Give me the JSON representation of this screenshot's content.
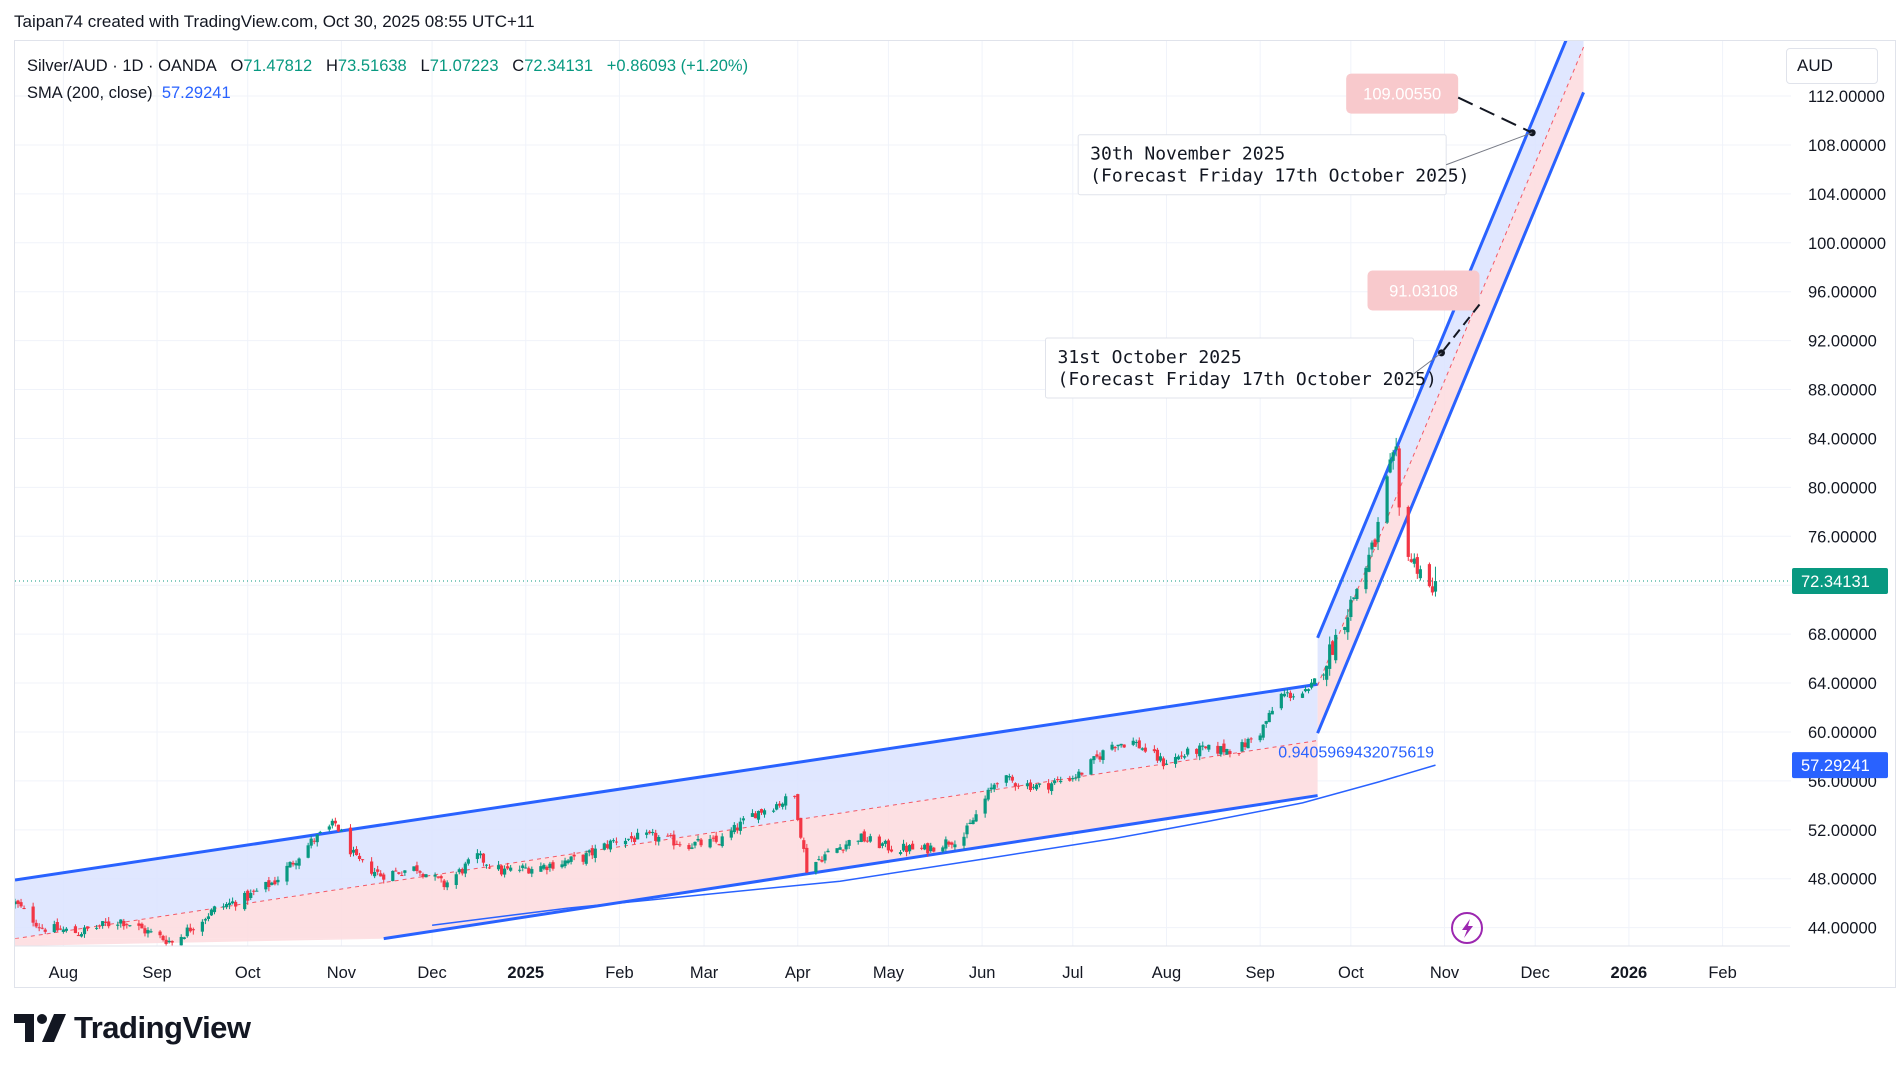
{
  "header": {
    "credit": "Taipan74 created with TradingView.com, Oct 30, 2025 08:55 UTC+11"
  },
  "legend": {
    "symbol": "Silver/AUD · 1D · OANDA",
    "o_label": "O",
    "o_value": "71.47812",
    "h_label": "H",
    "h_value": "73.51638",
    "l_label": "L",
    "l_value": "71.07223",
    "c_label": "C",
    "c_value": "72.34131",
    "change": "+0.86093 (+1.20%)",
    "sma_label": "SMA (200, close)",
    "sma_value": "57.29241"
  },
  "currency": "AUD",
  "brand": {
    "name": "TradingView"
  },
  "colors": {
    "up": "#089981",
    "down": "#f23645",
    "channel_line": "#2962ff",
    "upper_fill": "#dbe3ff",
    "lower_fill": "#fddbde",
    "sma": "#2962ff",
    "price_badge": "#089981",
    "target_badge": "#f8c9cc"
  },
  "chart_data": {
    "type": "candlestick",
    "title": "Silver/AUD · 1D · OANDA",
    "ylabel": "AUD",
    "ylim": [
      42.5,
      116.5
    ],
    "y_ticks": [
      "44.00000",
      "48.00000",
      "52.00000",
      "56.00000",
      "60.00000",
      "64.00000",
      "68.00000",
      "72.00000",
      "76.00000",
      "80.00000",
      "84.00000",
      "88.00000",
      "92.00000",
      "96.00000",
      "100.00000",
      "104.00000",
      "108.00000",
      "112.00000"
    ],
    "x_ticks": [
      "Aug",
      "Sep",
      "Oct",
      "Nov",
      "Dec",
      "2025",
      "Feb",
      "Mar",
      "Apr",
      "May",
      "Jun",
      "Jul",
      "Aug",
      "Sep",
      "Oct",
      "Nov",
      "Dec",
      "2026",
      "Feb"
    ],
    "x_tick_dates": [
      "2024-08-01",
      "2024-09-01",
      "2024-10-01",
      "2024-11-01",
      "2024-12-01",
      "2025-01-01",
      "2025-02-01",
      "2025-03-01",
      "2025-04-01",
      "2025-05-01",
      "2025-06-01",
      "2025-07-01",
      "2025-08-01",
      "2025-09-01",
      "2025-10-01",
      "2025-11-01",
      "2025-12-01",
      "2026-01-01",
      "2026-02-01"
    ],
    "anchors": [
      [
        "2024-07-16",
        46.0
      ],
      [
        "2024-07-25",
        44.0
      ],
      [
        "2024-08-06",
        43.6
      ],
      [
        "2024-08-20",
        44.6
      ],
      [
        "2024-09-06",
        42.8
      ],
      [
        "2024-09-20",
        45.5
      ],
      [
        "2024-10-01",
        46.5
      ],
      [
        "2024-10-10",
        47.8
      ],
      [
        "2024-10-22",
        51.0
      ],
      [
        "2024-10-30",
        52.5
      ],
      [
        "2024-11-06",
        49.5
      ],
      [
        "2024-11-14",
        48.3
      ],
      [
        "2024-11-26",
        48.9
      ],
      [
        "2024-12-05",
        47.5
      ],
      [
        "2024-12-16",
        49.8
      ],
      [
        "2024-12-24",
        48.6
      ],
      [
        "2025-01-06",
        49.0
      ],
      [
        "2025-01-20",
        49.7
      ],
      [
        "2025-01-31",
        51.2
      ],
      [
        "2025-02-12",
        51.4
      ],
      [
        "2025-02-24",
        50.8
      ],
      [
        "2025-03-06",
        51.0
      ],
      [
        "2025-03-18",
        53.4
      ],
      [
        "2025-03-31",
        54.7
      ],
      [
        "2025-04-04",
        48.8
      ],
      [
        "2025-04-09",
        49.8
      ],
      [
        "2025-04-21",
        51.4
      ],
      [
        "2025-05-02",
        50.5
      ],
      [
        "2025-05-13",
        50.4
      ],
      [
        "2025-05-26",
        51.5
      ],
      [
        "2025-06-06",
        56.2
      ],
      [
        "2025-06-20",
        55.5
      ],
      [
        "2025-07-03",
        56.5
      ],
      [
        "2025-07-14",
        59.0
      ],
      [
        "2025-07-21",
        59.2
      ],
      [
        "2025-07-31",
        57.5
      ],
      [
        "2025-08-11",
        58.5
      ],
      [
        "2025-08-25",
        58.6
      ],
      [
        "2025-09-01",
        60.0
      ],
      [
        "2025-09-08",
        63.0
      ],
      [
        "2025-09-17",
        63.2
      ],
      [
        "2025-09-23",
        66.0
      ],
      [
        "2025-10-01",
        70.5
      ],
      [
        "2025-10-09",
        75.5
      ],
      [
        "2025-10-14",
        81.5
      ],
      [
        "2025-10-16",
        82.5
      ],
      [
        "2025-10-17",
        78.0
      ],
      [
        "2025-10-21",
        74.0
      ],
      [
        "2025-10-24",
        73.5
      ],
      [
        "2025-10-28",
        71.1
      ],
      [
        "2025-10-29",
        72.34131
      ]
    ],
    "sma_series": [
      [
        "2024-12-01",
        44.2
      ],
      [
        "2025-01-15",
        45.6
      ],
      [
        "2025-03-01",
        46.7
      ],
      [
        "2025-04-15",
        47.8
      ],
      [
        "2025-06-01",
        49.6
      ],
      [
        "2025-07-15",
        51.3
      ],
      [
        "2025-08-15",
        52.7
      ],
      [
        "2025-09-15",
        54.2
      ],
      [
        "2025-10-10",
        55.9
      ],
      [
        "2025-10-29",
        57.29241
      ]
    ],
    "last_price": 72.34131,
    "last_price_label": "72.34131",
    "sma_last": 57.29241,
    "sma_last_label": "57.29241",
    "channels": [
      {
        "name": "2024-2025 ascending channel",
        "upper": [
          [
            "2024-07-16",
            47.9
          ],
          [
            "2025-09-20",
            63.9
          ]
        ],
        "mid": [
          [
            "2024-07-16",
            43.1
          ],
          [
            "2025-09-20",
            59.3
          ]
        ],
        "lower": [
          [
            "2024-11-15",
            43.1
          ],
          [
            "2025-09-20",
            54.8
          ]
        ]
      },
      {
        "name": "Steep breakout channel",
        "upper": [
          [
            "2025-09-20",
            67.7
          ],
          [
            "2025-12-17",
            120.0
          ]
        ],
        "mid": [
          [
            "2025-09-20",
            63.8
          ],
          [
            "2025-12-17",
            116.0
          ]
        ],
        "lower": [
          [
            "2025-09-20",
            59.9
          ],
          [
            "2025-12-17",
            112.3
          ]
        ]
      }
    ],
    "fib_label": "0.9405969432075619",
    "annotations": [
      {
        "target_value": 109.0055,
        "target_label": "109.00550",
        "point": [
          "2025-11-30",
          109.0
        ],
        "line1": "30th November 2025",
        "line2": "(Forecast Friday 17th October 2025)"
      },
      {
        "target_value": 91.03108,
        "target_label": "91.03108",
        "point": [
          "2025-10-31",
          91.0
        ],
        "line1": "31st October 2025",
        "line2": "(Forecast Friday 17th October 2025)"
      }
    ]
  }
}
